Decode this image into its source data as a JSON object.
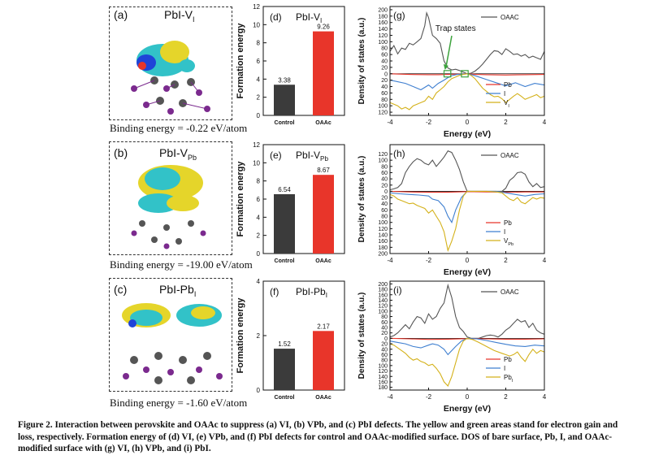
{
  "structures": [
    {
      "label": "(a)",
      "title": "PbI-V",
      "title_sub": "I",
      "binding": "Binding energy = -0.22 eV/atom"
    },
    {
      "label": "(b)",
      "title": "PbI-V",
      "title_sub": "Pb",
      "binding": "Binding energy = -19.00 eV/atom"
    },
    {
      "label": "(c)",
      "title": "PbI-Pb",
      "title_sub": "I",
      "binding": "Binding energy = -1.60 eV/atom"
    }
  ],
  "colors": {
    "control": "#3b3b3b",
    "oaac": "#e8352a",
    "pb": "#e8352a",
    "i": "#3f7fd0",
    "v": "#d4b11a",
    "oaac_line": "#555555",
    "arrow": "#3ca23c",
    "box": "#3ca23c"
  },
  "chart_data": [
    {
      "type": "bar",
      "panel": "(d)",
      "title": "PbI-V",
      "title_sub": "I",
      "categories": [
        "Control",
        "OAAc"
      ],
      "values": [
        3.38,
        9.26
      ],
      "value_labels": [
        "3.38",
        "9.26"
      ],
      "ylabel": "Formation energy",
      "ylim": [
        0,
        12
      ],
      "yticks": [
        0,
        2,
        4,
        6,
        8,
        10,
        12
      ]
    },
    {
      "type": "bar",
      "panel": "(e)",
      "title": "PbI-V",
      "title_sub": "Pb",
      "categories": [
        "Control",
        "OAAc"
      ],
      "values": [
        6.54,
        8.67
      ],
      "value_labels": [
        "6.54",
        "8.67"
      ],
      "ylabel": "Formation energy",
      "ylim": [
        0,
        12
      ],
      "yticks": [
        0,
        2,
        4,
        6,
        8,
        10,
        12
      ]
    },
    {
      "type": "bar",
      "panel": "(f)",
      "title": "PbI-Pb",
      "title_sub": "I",
      "categories": [
        "Control",
        "OAAc"
      ],
      "values": [
        1.52,
        2.17
      ],
      "value_labels": [
        "1.52",
        "2.17"
      ],
      "ylabel": "Formation energy",
      "ylim": [
        0,
        4
      ],
      "yticks": [
        0,
        2,
        4
      ]
    },
    {
      "type": "line",
      "panel": "(g)",
      "xlabel": "Energy (eV)",
      "ylabel": "Density of states (a.u.)",
      "xlim": [
        -4,
        4
      ],
      "xticks": [
        -4,
        -2,
        0,
        2,
        4
      ],
      "ylim": [
        -130,
        210
      ],
      "yticks": [
        -120,
        -100,
        -80,
        -60,
        -40,
        -20,
        0,
        20,
        40,
        60,
        80,
        100,
        120,
        140,
        160,
        180,
        200
      ],
      "ytick_labels": [
        "120",
        "100",
        "80",
        "60",
        "40",
        "20",
        "0",
        "20",
        "40",
        "60",
        "80",
        "100",
        "120",
        "140",
        "160",
        "180",
        "200"
      ],
      "legend_top": "OAAC",
      "legend": [
        "Pb",
        "I",
        "V"
      ],
      "legend_sub": "I",
      "annotation": "Trap states",
      "series": [
        {
          "name": "OAAC",
          "x": [
            -4,
            -3.8,
            -3.6,
            -3.4,
            -3.2,
            -3,
            -2.8,
            -2.6,
            -2.4,
            -2.2,
            -2.1,
            -2,
            -1.8,
            -1.6,
            -1.4,
            -1.2,
            -1,
            -0.8,
            -0.6,
            -0.4,
            -0.2,
            0,
            0.2,
            0.4,
            0.6,
            0.8,
            1,
            1.2,
            1.4,
            1.6,
            1.8,
            2,
            2.2,
            2.4,
            2.6,
            2.8,
            3,
            3.2,
            3.4,
            3.6,
            3.8,
            4
          ],
          "y": [
            70,
            88,
            62,
            80,
            76,
            95,
            90,
            100,
            110,
            150,
            190,
            175,
            120,
            110,
            95,
            40,
            18,
            12,
            14,
            10,
            5,
            0,
            2,
            8,
            18,
            30,
            45,
            60,
            72,
            70,
            60,
            78,
            70,
            60,
            62,
            55,
            60,
            50,
            55,
            50,
            45,
            70
          ]
        },
        {
          "name": "Pb",
          "x": [
            -4,
            -3,
            -2,
            -1.5,
            -1,
            -0.5,
            0,
            0.5,
            1,
            2,
            3,
            4
          ],
          "y": [
            0,
            -2,
            -3,
            -3,
            -2,
            -1,
            0,
            -2,
            -3,
            -4,
            -3,
            -2
          ]
        },
        {
          "name": "I",
          "x": [
            -4,
            -3.6,
            -3.2,
            -2.8,
            -2.4,
            -2,
            -1.8,
            -1.5,
            -1.2,
            -1,
            -0.8,
            -0.5,
            0,
            0.3,
            0.6,
            1,
            1.5,
            2,
            2.5,
            3,
            3.5,
            4
          ],
          "y": [
            -20,
            -25,
            -30,
            -40,
            -50,
            -35,
            -45,
            -30,
            -20,
            -12,
            -6,
            -2,
            0,
            -4,
            -10,
            -18,
            -28,
            -38,
            -28,
            -40,
            -30,
            -35
          ]
        },
        {
          "name": "VI",
          "x": [
            -4,
            -3.8,
            -3.6,
            -3.4,
            -3.2,
            -3,
            -2.8,
            -2.6,
            -2.4,
            -2.2,
            -2,
            -1.8,
            -1.6,
            -1.4,
            -1.2,
            -1,
            -0.8,
            -0.6,
            -0.4,
            -0.2,
            0,
            0.2,
            0.4,
            0.6,
            0.8,
            1,
            1.2,
            1.4,
            1.6,
            1.8,
            2,
            2.2,
            2.4,
            2.6,
            2.8,
            3,
            3.2,
            3.4,
            3.6,
            3.8,
            4
          ],
          "y": [
            -90,
            -95,
            -100,
            -110,
            -105,
            -112,
            -100,
            -95,
            -90,
            -85,
            -70,
            -80,
            -60,
            -50,
            -40,
            -25,
            -15,
            -10,
            -5,
            -2,
            0,
            -5,
            -15,
            -30,
            -45,
            -55,
            -65,
            -72,
            -70,
            -78,
            -90,
            -80,
            -70,
            -62,
            -70,
            -80,
            -75,
            -70,
            -65,
            -75,
            -70
          ]
        }
      ]
    },
    {
      "type": "line",
      "panel": "(h)",
      "xlabel": "Energy (eV)",
      "ylabel": "Density of states (a.u.)",
      "xlim": [
        -4,
        4
      ],
      "xticks": [
        -4,
        -2,
        0,
        2,
        4
      ],
      "ylim": [
        -200,
        150
      ],
      "yticks": [
        -200,
        -180,
        -160,
        -140,
        -120,
        -100,
        -80,
        -60,
        -40,
        -20,
        0,
        20,
        40,
        60,
        80,
        100,
        120
      ],
      "ytick_labels": [
        "200",
        "180",
        "160",
        "140",
        "120",
        "100",
        "80",
        "60",
        "40",
        "20",
        "0",
        "20",
        "40",
        "60",
        "80",
        "100",
        "120"
      ],
      "legend_top": "OAAC",
      "legend": [
        "Pb",
        "I",
        "V"
      ],
      "legend_sub": "Pb",
      "series": [
        {
          "name": "OAAC",
          "x": [
            -4,
            -3.8,
            -3.6,
            -3.4,
            -3.2,
            -3,
            -2.8,
            -2.6,
            -2.4,
            -2.2,
            -2,
            -1.8,
            -1.6,
            -1.4,
            -1.2,
            -1,
            -0.8,
            -0.6,
            -0.4,
            -0.2,
            0,
            0.2,
            0.4,
            0.6,
            0.8,
            1,
            1.2,
            1.4,
            1.6,
            1.8,
            2,
            2.2,
            2.4,
            2.6,
            2.8,
            3,
            3.2,
            3.4,
            3.6,
            3.8,
            4
          ],
          "y": [
            5,
            8,
            12,
            25,
            60,
            80,
            95,
            105,
            100,
            90,
            85,
            100,
            80,
            95,
            110,
            130,
            125,
            100,
            70,
            30,
            0,
            0,
            0,
            0,
            0,
            0,
            0,
            0,
            0,
            0,
            10,
            35,
            45,
            60,
            62,
            55,
            30,
            15,
            25,
            12,
            15
          ]
        },
        {
          "name": "Pb",
          "x": [
            -4,
            -3,
            -2,
            -1,
            0,
            1,
            2,
            3,
            4
          ],
          "y": [
            0,
            -2,
            -3,
            -3,
            -1,
            -2,
            -3,
            -2,
            -2
          ]
        },
        {
          "name": "I",
          "x": [
            -4,
            -3.5,
            -3,
            -2.5,
            -2,
            -1.8,
            -1.5,
            -1.2,
            -1,
            -0.8,
            -0.6,
            -0.3,
            0,
            0.5,
            1,
            1.5,
            2,
            2.5,
            3,
            3.5,
            4
          ],
          "y": [
            -5,
            -8,
            -10,
            -12,
            -15,
            -25,
            -30,
            -50,
            -80,
            -100,
            -60,
            -20,
            0,
            0,
            0,
            0,
            -5,
            -10,
            -15,
            -10,
            -8
          ]
        },
        {
          "name": "VPb",
          "x": [
            -4,
            -3.8,
            -3.6,
            -3.4,
            -3.2,
            -3,
            -2.8,
            -2.6,
            -2.4,
            -2.2,
            -2,
            -1.8,
            -1.6,
            -1.4,
            -1.2,
            -1,
            -0.8,
            -0.6,
            -0.4,
            -0.2,
            0,
            0.5,
            1,
            1.5,
            1.8,
            2,
            2.2,
            2.4,
            2.6,
            2.8,
            3,
            3.2,
            3.4,
            3.6,
            3.8,
            4
          ],
          "y": [
            -10,
            -15,
            -25,
            -30,
            -35,
            -40,
            -38,
            -45,
            -50,
            -55,
            -70,
            -60,
            -80,
            -100,
            -130,
            -190,
            -160,
            -120,
            -60,
            -15,
            0,
            0,
            0,
            -2,
            -5,
            -15,
            -25,
            -30,
            -20,
            -35,
            -40,
            -30,
            -20,
            -25,
            -20,
            -22
          ]
        }
      ]
    },
    {
      "type": "line",
      "panel": "(i)",
      "xlabel": "Energy (eV)",
      "ylabel": "Density of states (a.u.)",
      "xlim": [
        -4,
        4
      ],
      "xticks": [
        -4,
        -2,
        0,
        2,
        4
      ],
      "ylim": [
        -190,
        210
      ],
      "yticks": [
        -180,
        -160,
        -140,
        -120,
        -100,
        -80,
        -60,
        -40,
        -20,
        0,
        20,
        40,
        60,
        80,
        100,
        120,
        140,
        160,
        180,
        200
      ],
      "ytick_labels": [
        "180",
        "160",
        "140",
        "120",
        "100",
        "80",
        "60",
        "40",
        "20",
        "0",
        "20",
        "40",
        "60",
        "80",
        "100",
        "120",
        "140",
        "160",
        "180",
        "200"
      ],
      "legend_top": "OAAC",
      "legend": [
        "Pb",
        "I",
        "Pb"
      ],
      "legend_sub": "I",
      "series": [
        {
          "name": "OAAC",
          "x": [
            -4,
            -3.8,
            -3.6,
            -3.4,
            -3.2,
            -3,
            -2.8,
            -2.6,
            -2.4,
            -2.2,
            -2,
            -1.8,
            -1.6,
            -1.4,
            -1.2,
            -1,
            -0.8,
            -0.6,
            -0.4,
            -0.2,
            0,
            0.2,
            0.4,
            0.6,
            0.8,
            1,
            1.2,
            1.4,
            1.6,
            1.8,
            2,
            2.2,
            2.4,
            2.6,
            2.8,
            3,
            3.2,
            3.4,
            3.6,
            3.8,
            4
          ],
          "y": [
            5,
            10,
            20,
            35,
            50,
            35,
            60,
            80,
            75,
            55,
            90,
            70,
            80,
            110,
            130,
            195,
            150,
            80,
            40,
            25,
            5,
            0,
            0,
            0,
            5,
            10,
            12,
            10,
            5,
            15,
            30,
            40,
            55,
            70,
            60,
            65,
            40,
            55,
            30,
            20,
            15
          ]
        },
        {
          "name": "Pb",
          "x": [
            -4,
            -3,
            -2,
            -1,
            0,
            1,
            2,
            3,
            4
          ],
          "y": [
            0,
            -2,
            -4,
            -3,
            -1,
            -2,
            -3,
            -3,
            -2
          ]
        },
        {
          "name": "I",
          "x": [
            -4,
            -3.6,
            -3.2,
            -2.8,
            -2.4,
            -2,
            -1.8,
            -1.5,
            -1.2,
            -1,
            -0.6,
            -0.3,
            0,
            0.5,
            1,
            1.5,
            2,
            2.5,
            3,
            3.5,
            4
          ],
          "y": [
            -10,
            -15,
            -20,
            -30,
            -35,
            -25,
            -20,
            -25,
            -40,
            -60,
            -30,
            -10,
            0,
            -2,
            -8,
            -15,
            -22,
            -28,
            -30,
            -25,
            -28
          ]
        },
        {
          "name": "PbI",
          "x": [
            -4,
            -3.8,
            -3.6,
            -3.4,
            -3.2,
            -3,
            -2.8,
            -2.6,
            -2.4,
            -2.2,
            -2,
            -1.8,
            -1.6,
            -1.4,
            -1.2,
            -1,
            -0.8,
            -0.6,
            -0.4,
            -0.2,
            0,
            0.3,
            0.6,
            1,
            1.4,
            1.8,
            2.2,
            2.4,
            2.6,
            2.8,
            3,
            3.2,
            3.4,
            3.6,
            3.8,
            4
          ],
          "y": [
            -20,
            -25,
            -35,
            -45,
            -55,
            -70,
            -80,
            -75,
            -85,
            -90,
            -100,
            -95,
            -110,
            -130,
            -160,
            -175,
            -140,
            -90,
            -40,
            -10,
            0,
            -5,
            -15,
            -30,
            -45,
            -55,
            -65,
            -60,
            -50,
            -70,
            -85,
            -60,
            -40,
            -55,
            -45,
            -50
          ]
        }
      ]
    }
  ],
  "caption": {
    "label": "Figure 2.",
    "text": "Interaction between perovskite and OAAc to suppress (a) VI, (b) VPb, and (c) PbI defects. The yellow and green areas stand for electron gain and loss, respectively. Formation energy of (d) VI, (e) VPb, and (f) PbI defects for control and OAAc-modified surface. DOS of bare surface, Pb, I, and OAAc-modified surface with (g) VI, (h) VPb, and (i) PbI."
  }
}
